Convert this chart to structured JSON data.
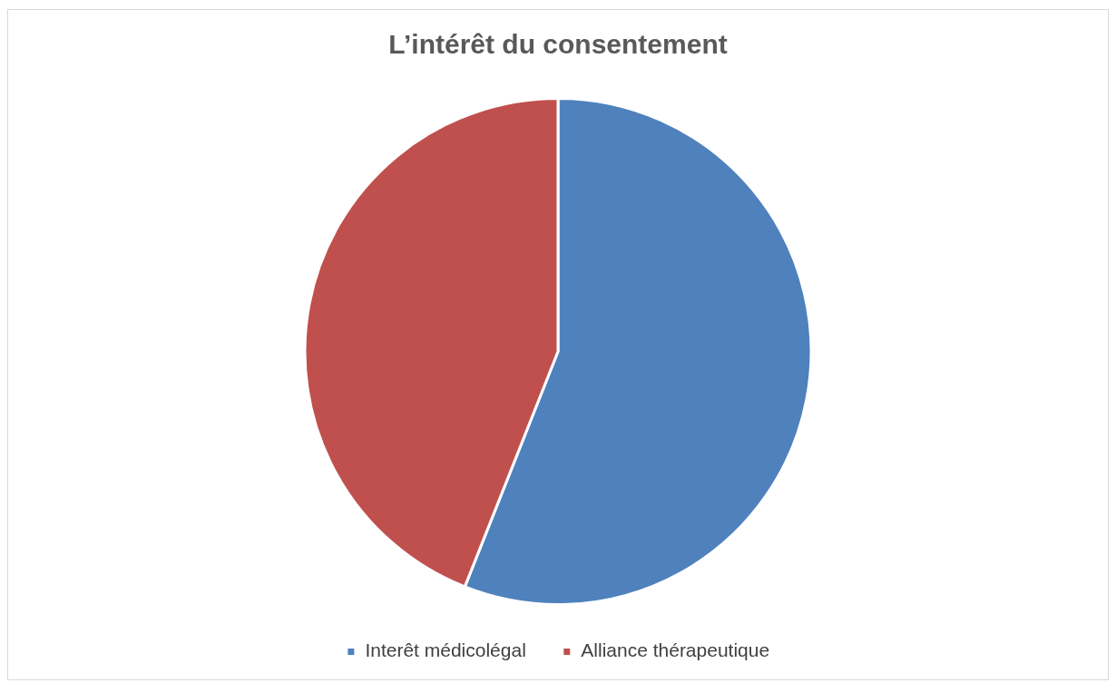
{
  "chart_data": {
    "type": "pie",
    "title": "L’intérêt du consentement",
    "categories": [
      "Interêt médicolégal",
      "Alliance thérapeutique"
    ],
    "values": [
      56,
      44
    ],
    "colors": [
      "#4f81bd",
      "#c0504d"
    ],
    "legend": "bottom"
  }
}
